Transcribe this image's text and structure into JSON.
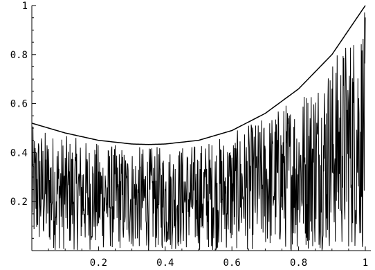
{
  "chart_data": {
    "type": "line",
    "title": "",
    "xlabel": "",
    "ylabel": "",
    "xlim": [
      0,
      1
    ],
    "ylim": [
      0,
      1
    ],
    "x_ticks": [
      {
        "value": 0.2,
        "label": "0.2"
      },
      {
        "value": 0.4,
        "label": "0.4"
      },
      {
        "value": 0.6,
        "label": "0.6"
      },
      {
        "value": 0.8,
        "label": "0.8"
      },
      {
        "value": 1.0,
        "label": "1"
      }
    ],
    "y_ticks": [
      {
        "value": 0.2,
        "label": "0.2"
      },
      {
        "value": 0.4,
        "label": "0.4"
      },
      {
        "value": 0.6,
        "label": "0.6"
      },
      {
        "value": 0.8,
        "label": "0.8"
      },
      {
        "value": 1.0,
        "label": "1"
      }
    ],
    "grid": false,
    "series": [
      {
        "kind": "envelope-curve",
        "x": [
          0,
          0.1,
          0.2,
          0.3,
          0.35,
          0.4,
          0.5,
          0.6,
          0.7,
          0.8,
          0.9,
          1.0
        ],
        "values": [
          0.52,
          0.48,
          0.45,
          0.435,
          0.433,
          0.435,
          0.45,
          0.49,
          0.56,
          0.66,
          0.8,
          1.0
        ]
      },
      {
        "kind": "oscillating-samples",
        "x_range": [
          0,
          1
        ],
        "points": 900,
        "y_min": 0,
        "y_max_fraction_of_envelope": 0.98
      }
    ]
  }
}
